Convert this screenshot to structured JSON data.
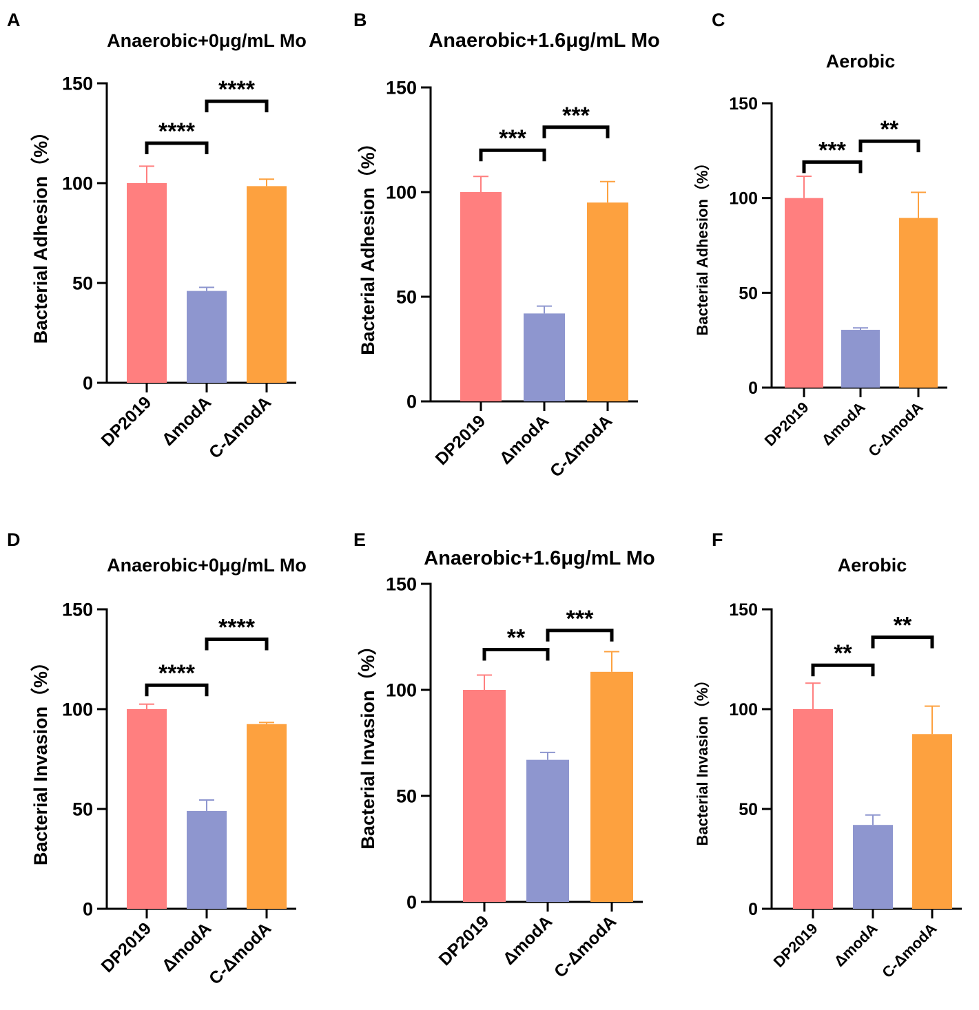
{
  "colors": {
    "dp2019": "#FF7F7F",
    "modA": "#8E96CF",
    "c_modA": "#FDA13F",
    "axis": "#000000"
  },
  "chart_data": [
    {
      "panel": "A",
      "type": "bar",
      "title": "Anaerobic+0μg/mL Mo",
      "ylabel": "Bacterial Adhesion（%）",
      "categories": [
        "DP2019",
        "ΔmodA",
        "C-ΔmodA"
      ],
      "values": [
        100,
        46,
        98.5
      ],
      "errors": [
        8.5,
        1.8,
        3.5
      ],
      "ylim": [
        0,
        150
      ],
      "yticks": [
        "0",
        "50",
        "100",
        "150"
      ],
      "significance": [
        {
          "from": 0,
          "to": 1,
          "label": "****",
          "y": 120
        },
        {
          "from": 1,
          "to": 2,
          "label": "****",
          "y": 141
        }
      ]
    },
    {
      "panel": "B",
      "type": "bar",
      "title": "Anaerobic+1.6μg/mL Mo",
      "ylabel": "Bacterial Adhesion（%）",
      "categories": [
        "DP2019",
        "ΔmodA",
        "C-ΔmodA"
      ],
      "values": [
        100,
        42,
        95
      ],
      "errors": [
        7.5,
        3.5,
        10
      ],
      "ylim": [
        0,
        150
      ],
      "yticks": [
        "0",
        "50",
        "100",
        "150"
      ],
      "significance": [
        {
          "from": 0,
          "to": 1,
          "label": "***",
          "y": 120
        },
        {
          "from": 1,
          "to": 2,
          "label": "***",
          "y": 131
        }
      ]
    },
    {
      "panel": "C",
      "type": "bar",
      "title": "Aerobic",
      "ylabel": "Bacterial Adhesion（%）",
      "categories": [
        "DP2019",
        "ΔmodA",
        "C-ΔmodA"
      ],
      "values": [
        100,
        30.5,
        89.5
      ],
      "errors": [
        11.5,
        1,
        13.5
      ],
      "ylim": [
        0,
        150
      ],
      "yticks": [
        "0",
        "50",
        "100",
        "150"
      ],
      "significance": [
        {
          "from": 0,
          "to": 1,
          "label": "***",
          "y": 119
        },
        {
          "from": 1,
          "to": 2,
          "label": "**",
          "y": 130
        }
      ]
    },
    {
      "panel": "D",
      "type": "bar",
      "title": "Anaerobic+0μg/mL Mo",
      "ylabel": "Bacterial Invasion（%）",
      "categories": [
        "DP2019",
        "ΔmodA",
        "C-ΔmodA"
      ],
      "values": [
        100,
        49,
        92.5
      ],
      "errors": [
        2.5,
        5.5,
        0.8
      ],
      "ylim": [
        0,
        150
      ],
      "yticks": [
        "0",
        "50",
        "100",
        "150"
      ],
      "significance": [
        {
          "from": 0,
          "to": 1,
          "label": "****",
          "y": 112
        },
        {
          "from": 1,
          "to": 2,
          "label": "****",
          "y": 135
        }
      ]
    },
    {
      "panel": "E",
      "type": "bar",
      "title": "Anaerobic+1.6μg/mL Mo",
      "ylabel": "Bacterial Invasion（%）",
      "categories": [
        "DP2019",
        "ΔmodA",
        "C-ΔmodA"
      ],
      "values": [
        100,
        67,
        108.5
      ],
      "errors": [
        7,
        3.5,
        9.5
      ],
      "ylim": [
        0,
        150
      ],
      "yticks": [
        "0",
        "50",
        "100",
        "150"
      ],
      "significance": [
        {
          "from": 0,
          "to": 1,
          "label": "**",
          "y": 119
        },
        {
          "from": 1,
          "to": 2,
          "label": "***",
          "y": 128
        }
      ]
    },
    {
      "panel": "F",
      "type": "bar",
      "title": "Aerobic",
      "ylabel": "Bacterial Invasion（%）",
      "categories": [
        "DP2019",
        "ΔmodA",
        "C-ΔmodA"
      ],
      "values": [
        100,
        42,
        87.5
      ],
      "errors": [
        13,
        5,
        14
      ],
      "ylim": [
        0,
        150
      ],
      "yticks": [
        "0",
        "50",
        "100",
        "150"
      ],
      "significance": [
        {
          "from": 0,
          "to": 1,
          "label": "**",
          "y": 122
        },
        {
          "from": 1,
          "to": 2,
          "label": "**",
          "y": 136
        }
      ]
    }
  ]
}
